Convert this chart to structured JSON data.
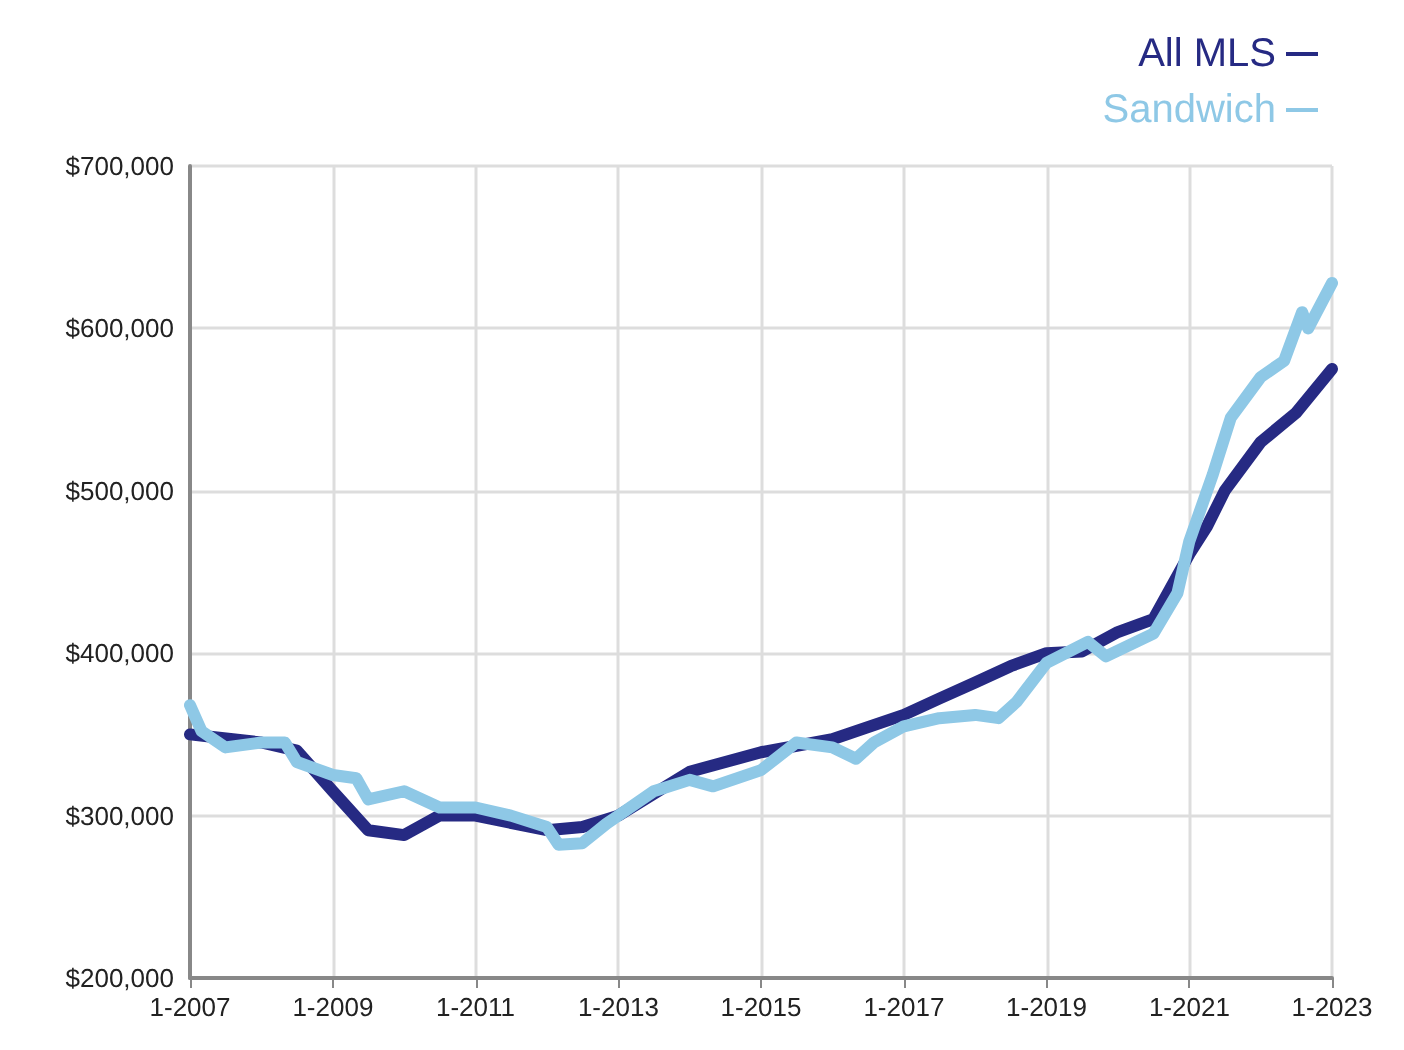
{
  "chart_data": {
    "type": "line",
    "xlim": [
      "2007-01",
      "2023-01"
    ],
    "xticks": [
      {
        "value": "2007-01",
        "label": "1-2007"
      },
      {
        "value": "2009-01",
        "label": "1-2009"
      },
      {
        "value": "2011-01",
        "label": "1-2011"
      },
      {
        "value": "2013-01",
        "label": "1-2013"
      },
      {
        "value": "2015-01",
        "label": "1-2015"
      },
      {
        "value": "2017-01",
        "label": "1-2017"
      },
      {
        "value": "2019-01",
        "label": "1-2019"
      },
      {
        "value": "2021-01",
        "label": "1-2021"
      },
      {
        "value": "2023-01",
        "label": "1-2023"
      }
    ],
    "ylim": [
      200000,
      700000
    ],
    "yticks": [
      {
        "value": 200000,
        "label": "$200,000"
      },
      {
        "value": 300000,
        "label": "$300,000"
      },
      {
        "value": 400000,
        "label": "$400,000"
      },
      {
        "value": 500000,
        "label": "$500,000"
      },
      {
        "value": 600000,
        "label": "$600,000"
      },
      {
        "value": 700000,
        "label": "$700,000"
      }
    ],
    "grid": true,
    "legend": "top right",
    "marker": "none",
    "line_style": "solid",
    "series": [
      {
        "name": "All MLS",
        "color": "#262a83",
        "x": [
          "2007-01",
          "2008-01",
          "2008-07",
          "2009-01",
          "2009-07",
          "2010-01",
          "2010-07",
          "2011-01",
          "2012-01",
          "2012-07",
          "2013-01",
          "2014-01",
          "2015-01",
          "2016-01",
          "2017-01",
          "2017-07",
          "2018-01",
          "2018-07",
          "2019-01",
          "2019-07",
          "2020-01",
          "2020-07",
          "2021-01",
          "2021-04",
          "2021-07",
          "2022-01",
          "2022-07",
          "2023-01"
        ],
        "values": [
          350000,
          345000,
          340000,
          315000,
          291000,
          288000,
          300000,
          300000,
          291000,
          293000,
          300000,
          327000,
          339000,
          347000,
          362000,
          372000,
          382000,
          392000,
          400000,
          401000,
          413000,
          421000,
          461000,
          478000,
          500000,
          530000,
          548000,
          575000
        ]
      },
      {
        "name": "Sandwich",
        "color": "#8ec8e6",
        "x": [
          "2007-01",
          "2007-03",
          "2007-07",
          "2008-01",
          "2008-05",
          "2008-07",
          "2009-01",
          "2009-05",
          "2009-07",
          "2010-01",
          "2010-07",
          "2011-01",
          "2011-07",
          "2012-01",
          "2012-03",
          "2012-07",
          "2012-11",
          "2013-01",
          "2013-07",
          "2014-01",
          "2014-05",
          "2015-01",
          "2015-07",
          "2016-01",
          "2016-05",
          "2016-08",
          "2017-01",
          "2017-07",
          "2018-01",
          "2018-05",
          "2018-08",
          "2019-01",
          "2019-08",
          "2019-11",
          "2020-07",
          "2020-11",
          "2021-01",
          "2021-05",
          "2021-08",
          "2022-01",
          "2022-05",
          "2022-08",
          "2022-09",
          "2023-01"
        ],
        "values": [
          368000,
          352000,
          342000,
          345000,
          345000,
          333000,
          325000,
          323000,
          310000,
          315000,
          305000,
          305000,
          300000,
          293000,
          282000,
          283000,
          295000,
          300000,
          315000,
          322000,
          318000,
          328000,
          345000,
          342000,
          335000,
          345000,
          355000,
          360000,
          362000,
          360000,
          370000,
          394000,
          407000,
          398000,
          412000,
          437000,
          469000,
          510000,
          545000,
          570000,
          580000,
          610000,
          600000,
          628000
        ]
      }
    ]
  }
}
